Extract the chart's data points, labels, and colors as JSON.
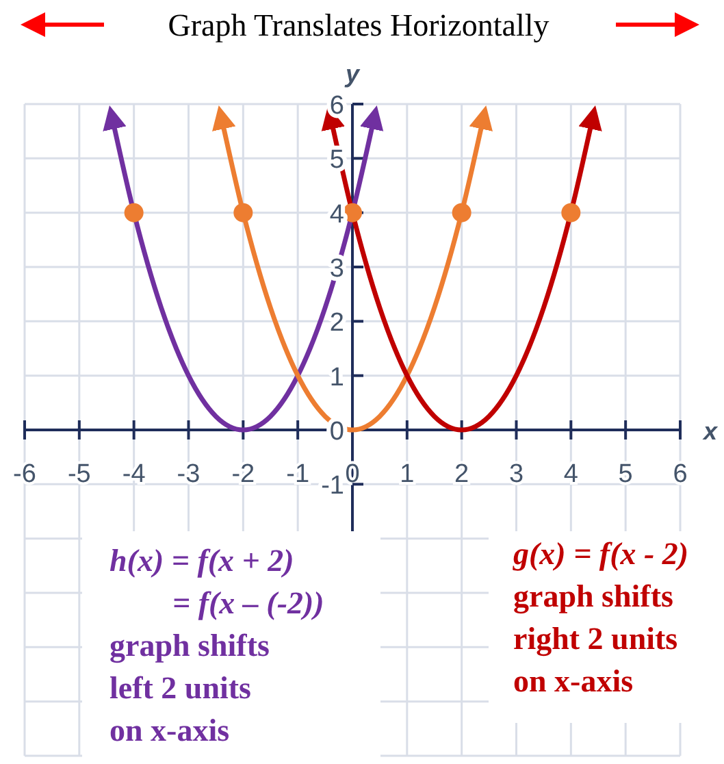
{
  "chart_data": {
    "type": "line",
    "title": "Graph Translates Horizontally",
    "xlabel": "x",
    "ylabel": "y",
    "xlim": [
      -6,
      6
    ],
    "xticks": [
      -6,
      -5,
      -4,
      -3,
      -2,
      -1,
      0,
      1,
      2,
      3,
      4,
      5,
      6
    ],
    "ylim": [
      -6,
      6
    ],
    "yticks": [
      {
        "value": -6,
        "label": null
      },
      {
        "value": -5,
        "label": null
      },
      {
        "value": -4,
        "label": null
      },
      {
        "value": -3,
        "label": null
      },
      {
        "value": -2,
        "label": null
      },
      -1,
      0,
      1,
      2,
      3,
      4,
      5,
      6
    ],
    "grid": true,
    "series": [
      {
        "name": "h(x) = f(x + 2)",
        "color": "#7030a0",
        "x": [
          -4.4,
          -4,
          -3.5,
          -3,
          -2.5,
          -2,
          -1.5,
          -1,
          -0.5,
          0,
          0.4
        ],
        "values": [
          5.76,
          4,
          2.25,
          1,
          0.25,
          0,
          0.25,
          1,
          2.25,
          4,
          5.76
        ]
      },
      {
        "color": "#ed7d31",
        "x": [
          -2.4,
          -2,
          -1.5,
          -1,
          -0.5,
          0,
          0.5,
          1,
          1.5,
          2,
          2.4
        ],
        "values": [
          5.76,
          4,
          2.25,
          1,
          0.25,
          0,
          0.25,
          1,
          2.25,
          4,
          5.76
        ]
      },
      {
        "name": "g(x) = f(x - 2)",
        "color": "#c00000",
        "x": [
          -0.4,
          0,
          0.5,
          1,
          1.5,
          2,
          2.5,
          3,
          3.5,
          4,
          4.4
        ],
        "values": [
          5.76,
          4,
          2.25,
          1,
          0.25,
          0,
          0.25,
          1,
          2.25,
          4,
          5.76
        ]
      },
      {
        "type": "scatter",
        "marker": "circle",
        "color": "#ed7d31",
        "x": [
          -4,
          -2,
          0,
          2,
          4
        ],
        "values": [
          4,
          4,
          4,
          4,
          4
        ]
      }
    ],
    "annotations": [
      "= f(x – (-2))",
      "graph shifts",
      "left 2 units",
      "on x-axis",
      "graph shifts",
      "right 2 units",
      "on x-axis"
    ]
  }
}
